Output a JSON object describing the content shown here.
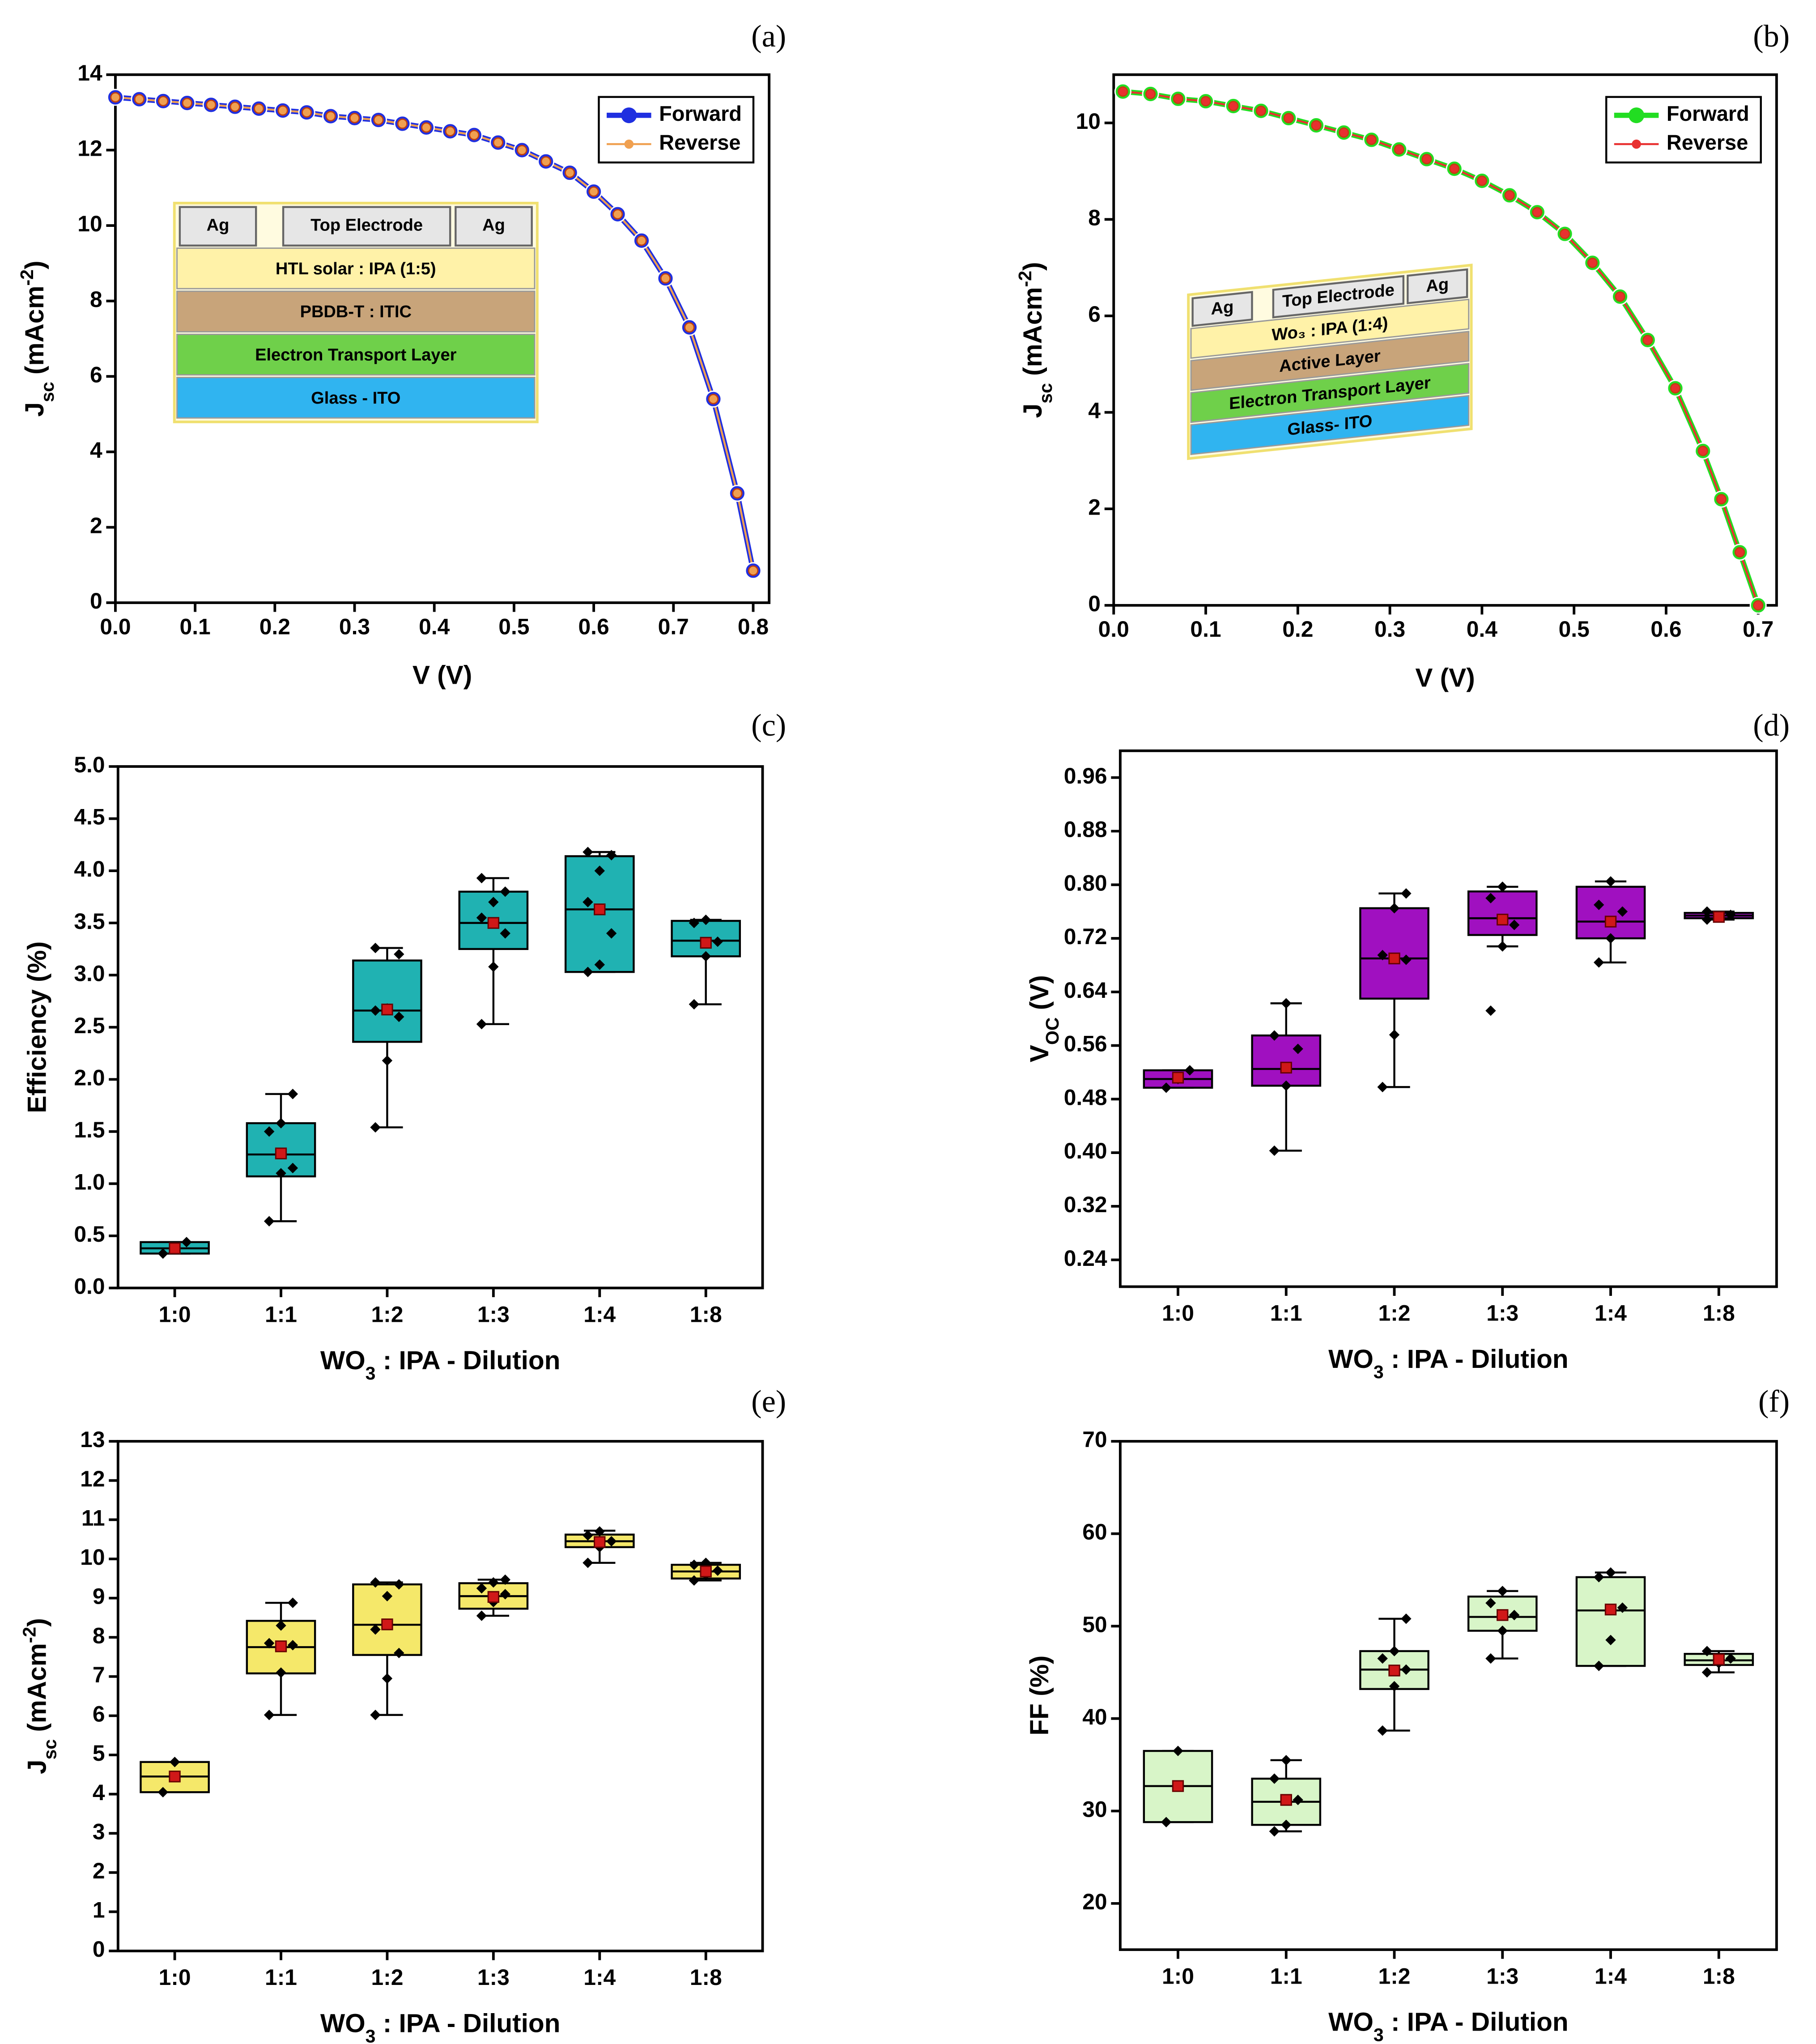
{
  "chart_data": [
    {
      "type": "line",
      "panel": "(a)",
      "xlabel": [
        {
          "text": "V (V)"
        }
      ],
      "ylabel": [
        {
          "text": "J"
        },
        {
          "text": "sc",
          "shift": "sub"
        },
        {
          "text": " (mAcm"
        },
        {
          "text": "-2",
          "shift": "super"
        },
        {
          "text": ")"
        }
      ],
      "x": [
        0,
        0.03,
        0.06,
        0.09,
        0.12,
        0.15,
        0.18,
        0.21,
        0.24,
        0.27,
        0.3,
        0.33,
        0.36,
        0.39,
        0.42,
        0.45,
        0.48,
        0.51,
        0.54,
        0.57,
        0.6,
        0.63,
        0.66,
        0.69,
        0.72,
        0.75,
        0.78,
        0.8
      ],
      "series": [
        {
          "name": "Forward",
          "color": "#1f2fe0",
          "values": [
            13.4,
            13.35,
            13.3,
            13.25,
            13.2,
            13.15,
            13.1,
            13.05,
            13.0,
            12.9,
            12.85,
            12.8,
            12.7,
            12.6,
            12.5,
            12.4,
            12.2,
            12.0,
            11.7,
            11.4,
            10.9,
            10.3,
            9.6,
            8.6,
            7.3,
            5.4,
            2.9,
            0.85
          ]
        },
        {
          "name": "Reverse",
          "color": "#f0a050",
          "values": [
            13.4,
            13.35,
            13.3,
            13.25,
            13.2,
            13.15,
            13.1,
            13.05,
            13.0,
            12.9,
            12.85,
            12.8,
            12.7,
            12.6,
            12.5,
            12.4,
            12.2,
            12.0,
            11.7,
            11.4,
            10.9,
            10.3,
            9.6,
            8.6,
            7.3,
            5.4,
            2.9,
            0.85
          ]
        }
      ],
      "xlim": [
        0,
        0.82
      ],
      "xticks": [
        {
          "value": 0,
          "label": "0.0"
        },
        0.1,
        0.2,
        0.3,
        0.4,
        0.5,
        0.6,
        0.7,
        0.8
      ],
      "ylim": [
        0,
        14
      ],
      "yticks": [
        0,
        2,
        4,
        6,
        8,
        10,
        12,
        14
      ],
      "legend": "upper right",
      "inset": {
        "top": [
          "Ag",
          "Top Electrode",
          "Ag"
        ],
        "top_color": "#e6e6e6",
        "layers": [
          {
            "text": "HTL solar : IPA (1:5)",
            "color": "#fff2a8"
          },
          {
            "text": "PBDB-T : ITIC",
            "color": "#c8a47a"
          },
          {
            "text": "Electron Transport Layer",
            "color": "#6fd04a"
          },
          {
            "text": "Glass - ITO",
            "color": "#30b4f0"
          }
        ]
      }
    },
    {
      "type": "line",
      "panel": "(b)",
      "xlabel": [
        {
          "text": "V (V)"
        }
      ],
      "ylabel": [
        {
          "text": "J"
        },
        {
          "text": "sc",
          "shift": "sub"
        },
        {
          "text": " (mAcm"
        },
        {
          "text": "-2",
          "shift": "super"
        },
        {
          "text": ")"
        }
      ],
      "x": [
        0.01,
        0.04,
        0.07,
        0.1,
        0.13,
        0.16,
        0.19,
        0.22,
        0.25,
        0.28,
        0.31,
        0.34,
        0.37,
        0.4,
        0.43,
        0.46,
        0.49,
        0.52,
        0.55,
        0.58,
        0.61,
        0.64,
        0.66,
        0.68,
        0.7
      ],
      "series": [
        {
          "name": "Forward",
          "color": "#22dd22",
          "values": [
            10.65,
            10.6,
            10.5,
            10.45,
            10.35,
            10.25,
            10.1,
            9.95,
            9.8,
            9.65,
            9.45,
            9.25,
            9.05,
            8.8,
            8.5,
            8.15,
            7.7,
            7.1,
            6.4,
            5.5,
            4.5,
            3.2,
            2.2,
            1.1,
            0.0
          ]
        },
        {
          "name": "Reverse",
          "color": "#e83030",
          "values": [
            10.65,
            10.6,
            10.5,
            10.45,
            10.35,
            10.25,
            10.1,
            9.95,
            9.8,
            9.65,
            9.45,
            9.25,
            9.05,
            8.8,
            8.5,
            8.15,
            7.7,
            7.1,
            6.4,
            5.5,
            4.5,
            3.2,
            2.2,
            1.1,
            0.0
          ]
        }
      ],
      "xlim": [
        0,
        0.72
      ],
      "xticks": [
        {
          "value": 0,
          "label": "0.0"
        },
        0.1,
        0.2,
        0.3,
        0.4,
        0.5,
        0.6,
        0.7
      ],
      "ylim": [
        0,
        11
      ],
      "yticks": [
        0,
        2,
        4,
        6,
        8,
        10
      ],
      "legend": "upper right",
      "inset": {
        "top": [
          "Ag",
          "Top Electrode",
          "Ag"
        ],
        "top_color": "#e6e6e6",
        "layers": [
          {
            "text": "Wo₃ : IPA (1:4)",
            "color": "#fff2a8"
          },
          {
            "text": "Active Layer",
            "color": "#c8a47a"
          },
          {
            "text": "Electron Transport Layer",
            "color": "#6fd04a"
          },
          {
            "text": "Glass- ITO",
            "color": "#30b4f0"
          }
        ]
      }
    },
    {
      "type": "box",
      "panel": "(c)",
      "color": "#20b2b2",
      "xlabel": [
        {
          "text": "WO"
        },
        {
          "text": "3",
          "shift": "sub"
        },
        {
          "text": " : IPA - Dilution"
        }
      ],
      "ylabel": [
        {
          "text": "Efficiency (%)"
        }
      ],
      "categories": [
        "1:0",
        "1:1",
        "1:2",
        "1:3",
        "1:4",
        "1:8"
      ],
      "boxes": [
        {
          "min": 0.33,
          "q1": 0.33,
          "median": 0.38,
          "q3": 0.44,
          "max": 0.44,
          "mean": 0.38,
          "points": [
            0.33,
            0.38,
            0.44
          ]
        },
        {
          "min": 0.64,
          "q1": 1.07,
          "median": 1.28,
          "q3": 1.58,
          "max": 1.86,
          "mean": 1.29,
          "points": [
            0.64,
            1.1,
            1.15,
            1.5,
            1.58,
            1.86
          ]
        },
        {
          "min": 1.54,
          "q1": 2.36,
          "median": 2.66,
          "q3": 3.14,
          "max": 3.26,
          "mean": 2.67,
          "points": [
            1.54,
            2.18,
            2.6,
            2.66,
            2.68,
            3.2,
            3.26
          ]
        },
        {
          "min": 2.53,
          "q1": 3.25,
          "median": 3.5,
          "q3": 3.8,
          "max": 3.93,
          "mean": 3.5,
          "points": [
            2.53,
            3.08,
            3.4,
            3.55,
            3.7,
            3.8,
            3.93
          ]
        },
        {
          "min": 3.03,
          "q1": 3.03,
          "median": 3.63,
          "q3": 4.14,
          "max": 4.18,
          "mean": 3.63,
          "points": [
            3.03,
            3.1,
            3.4,
            3.7,
            4.0,
            4.15,
            4.18
          ]
        },
        {
          "min": 2.72,
          "q1": 3.18,
          "median": 3.33,
          "q3": 3.52,
          "max": 3.53,
          "mean": 3.31,
          "points": [
            2.72,
            3.18,
            3.32,
            3.5,
            3.53
          ]
        }
      ],
      "ylim": [
        0,
        5
      ],
      "yticks": [
        {
          "value": 0,
          "label": "0.0"
        },
        0.5,
        {
          "value": 1,
          "label": "1.0"
        },
        1.5,
        {
          "value": 2,
          "label": "2.0"
        },
        2.5,
        {
          "value": 3,
          "label": "3.0"
        },
        3.5,
        {
          "value": 4,
          "label": "4.0"
        },
        4.5,
        {
          "value": 5,
          "label": "5.0"
        }
      ]
    },
    {
      "type": "box",
      "panel": "(d)",
      "color": "#a010c0",
      "xlabel": [
        {
          "text": "WO"
        },
        {
          "text": "3",
          "shift": "sub"
        },
        {
          "text": " : IPA - Dilution"
        }
      ],
      "ylabel": [
        {
          "text": "V"
        },
        {
          "text": "OC",
          "shift": "sub"
        },
        {
          "text": " (V)"
        }
      ],
      "categories": [
        "1:0",
        "1:1",
        "1:2",
        "1:3",
        "1:4",
        "1:8"
      ],
      "boxes": [
        {
          "min": 0.497,
          "q1": 0.497,
          "median": 0.51,
          "q3": 0.523,
          "max": 0.523,
          "mean": 0.512,
          "points": [
            0.497,
            0.51,
            0.523
          ]
        },
        {
          "min": 0.403,
          "q1": 0.5,
          "median": 0.525,
          "q3": 0.575,
          "max": 0.623,
          "mean": 0.527,
          "points": [
            0.403,
            0.5,
            0.555,
            0.575,
            0.623
          ]
        },
        {
          "min": 0.498,
          "q1": 0.63,
          "median": 0.69,
          "q3": 0.765,
          "max": 0.787,
          "mean": 0.69,
          "points": [
            0.498,
            0.576,
            0.688,
            0.695,
            0.765,
            0.787
          ]
        },
        {
          "min": 0.708,
          "q1": 0.725,
          "median": 0.75,
          "q3": 0.79,
          "max": 0.797,
          "mean": 0.748,
          "points": [
            0.612,
            0.708,
            0.74,
            0.78,
            0.797
          ]
        },
        {
          "min": 0.684,
          "q1": 0.72,
          "median": 0.745,
          "q3": 0.797,
          "max": 0.805,
          "mean": 0.745,
          "points": [
            0.684,
            0.72,
            0.76,
            0.77,
            0.805
          ]
        },
        {
          "min": 0.748,
          "q1": 0.75,
          "median": 0.754,
          "q3": 0.758,
          "max": 0.76,
          "mean": 0.752,
          "points": [
            0.748,
            0.752,
            0.755,
            0.76
          ]
        }
      ],
      "ylim": [
        0.2,
        1.0
      ],
      "yticks": [
        0.24,
        0.32,
        {
          "value": 0.4,
          "label": "0.40"
        },
        0.48,
        0.56,
        0.64,
        0.72,
        {
          "value": 0.8,
          "label": "0.80"
        },
        0.88,
        0.96
      ]
    },
    {
      "type": "box",
      "panel": "(e)",
      "color": "#f5e86a",
      "xlabel": [
        {
          "text": "WO"
        },
        {
          "text": "3",
          "shift": "sub"
        },
        {
          "text": " : IPA - Dilution"
        }
      ],
      "ylabel": [
        {
          "text": "J"
        },
        {
          "text": "sc",
          "shift": "sub"
        },
        {
          "text": " (mAcm"
        },
        {
          "text": "-2",
          "shift": "super"
        },
        {
          "text": ")"
        }
      ],
      "categories": [
        "1:0",
        "1:1",
        "1:2",
        "1:3",
        "1:4",
        "1:8"
      ],
      "boxes": [
        {
          "min": 4.05,
          "q1": 4.05,
          "median": 4.45,
          "q3": 4.82,
          "max": 4.82,
          "mean": 4.45,
          "points": [
            4.05,
            4.82
          ]
        },
        {
          "min": 6.02,
          "q1": 7.08,
          "median": 7.75,
          "q3": 8.42,
          "max": 8.88,
          "mean": 7.77,
          "points": [
            6.02,
            7.1,
            7.8,
            7.85,
            8.3,
            8.88
          ]
        },
        {
          "min": 6.02,
          "q1": 7.55,
          "median": 8.32,
          "q3": 9.35,
          "max": 9.4,
          "mean": 8.33,
          "points": [
            6.02,
            6.95,
            7.6,
            8.2,
            9.05,
            9.35,
            9.4
          ]
        },
        {
          "min": 8.55,
          "q1": 8.73,
          "median": 9.05,
          "q3": 9.38,
          "max": 9.47,
          "mean": 9.03,
          "points": [
            8.55,
            8.9,
            9.1,
            9.25,
            9.4,
            9.47
          ]
        },
        {
          "min": 9.9,
          "q1": 10.3,
          "median": 10.45,
          "q3": 10.62,
          "max": 10.72,
          "mean": 10.43,
          "points": [
            9.9,
            10.3,
            10.45,
            10.6,
            10.7
          ]
        },
        {
          "min": 9.45,
          "q1": 9.5,
          "median": 9.68,
          "q3": 9.85,
          "max": 9.9,
          "mean": 9.68,
          "points": [
            9.45,
            9.6,
            9.7,
            9.85,
            9.9
          ]
        }
      ],
      "ylim": [
        0,
        13
      ],
      "yticks": [
        0,
        1,
        2,
        3,
        4,
        5,
        6,
        7,
        8,
        9,
        10,
        11,
        12,
        13
      ]
    },
    {
      "type": "box",
      "panel": "(f)",
      "color": "#d8f5c8",
      "xlabel": [
        {
          "text": "WO"
        },
        {
          "text": "3",
          "shift": "sub"
        },
        {
          "text": " : IPA - Dilution"
        }
      ],
      "ylabel": [
        {
          "text": "FF (%)"
        }
      ],
      "categories": [
        "1:0",
        "1:1",
        "1:2",
        "1:3",
        "1:4",
        "1:8"
      ],
      "boxes": [
        {
          "min": 28.8,
          "q1": 28.8,
          "median": 32.7,
          "q3": 36.5,
          "max": 36.5,
          "mean": 32.7,
          "points": [
            28.8,
            36.5
          ]
        },
        {
          "min": 27.8,
          "q1": 28.5,
          "median": 31.0,
          "q3": 33.5,
          "max": 35.5,
          "mean": 31.2,
          "points": [
            27.8,
            28.5,
            31.2,
            33.5,
            35.5
          ]
        },
        {
          "min": 38.7,
          "q1": 43.2,
          "median": 45.3,
          "q3": 47.3,
          "max": 50.8,
          "mean": 45.2,
          "points": [
            38.7,
            43.5,
            45.3,
            46.5,
            47.3,
            50.8
          ]
        },
        {
          "min": 46.5,
          "q1": 49.5,
          "median": 51.0,
          "q3": 53.2,
          "max": 53.8,
          "mean": 51.2,
          "points": [
            46.5,
            49.5,
            51.2,
            52.5,
            53.8
          ]
        },
        {
          "min": 45.7,
          "q1": 45.7,
          "median": 51.7,
          "q3": 55.3,
          "max": 55.8,
          "mean": 51.8,
          "points": [
            45.7,
            48.5,
            52.0,
            55.3,
            55.8
          ]
        },
        {
          "min": 45.0,
          "q1": 45.8,
          "median": 46.3,
          "q3": 47.0,
          "max": 47.3,
          "mean": 46.4,
          "points": [
            45.0,
            46.0,
            46.5,
            47.3
          ]
        }
      ],
      "ylim": [
        15,
        70
      ],
      "yticks": [
        20,
        30,
        40,
        50,
        60,
        70
      ]
    }
  ]
}
